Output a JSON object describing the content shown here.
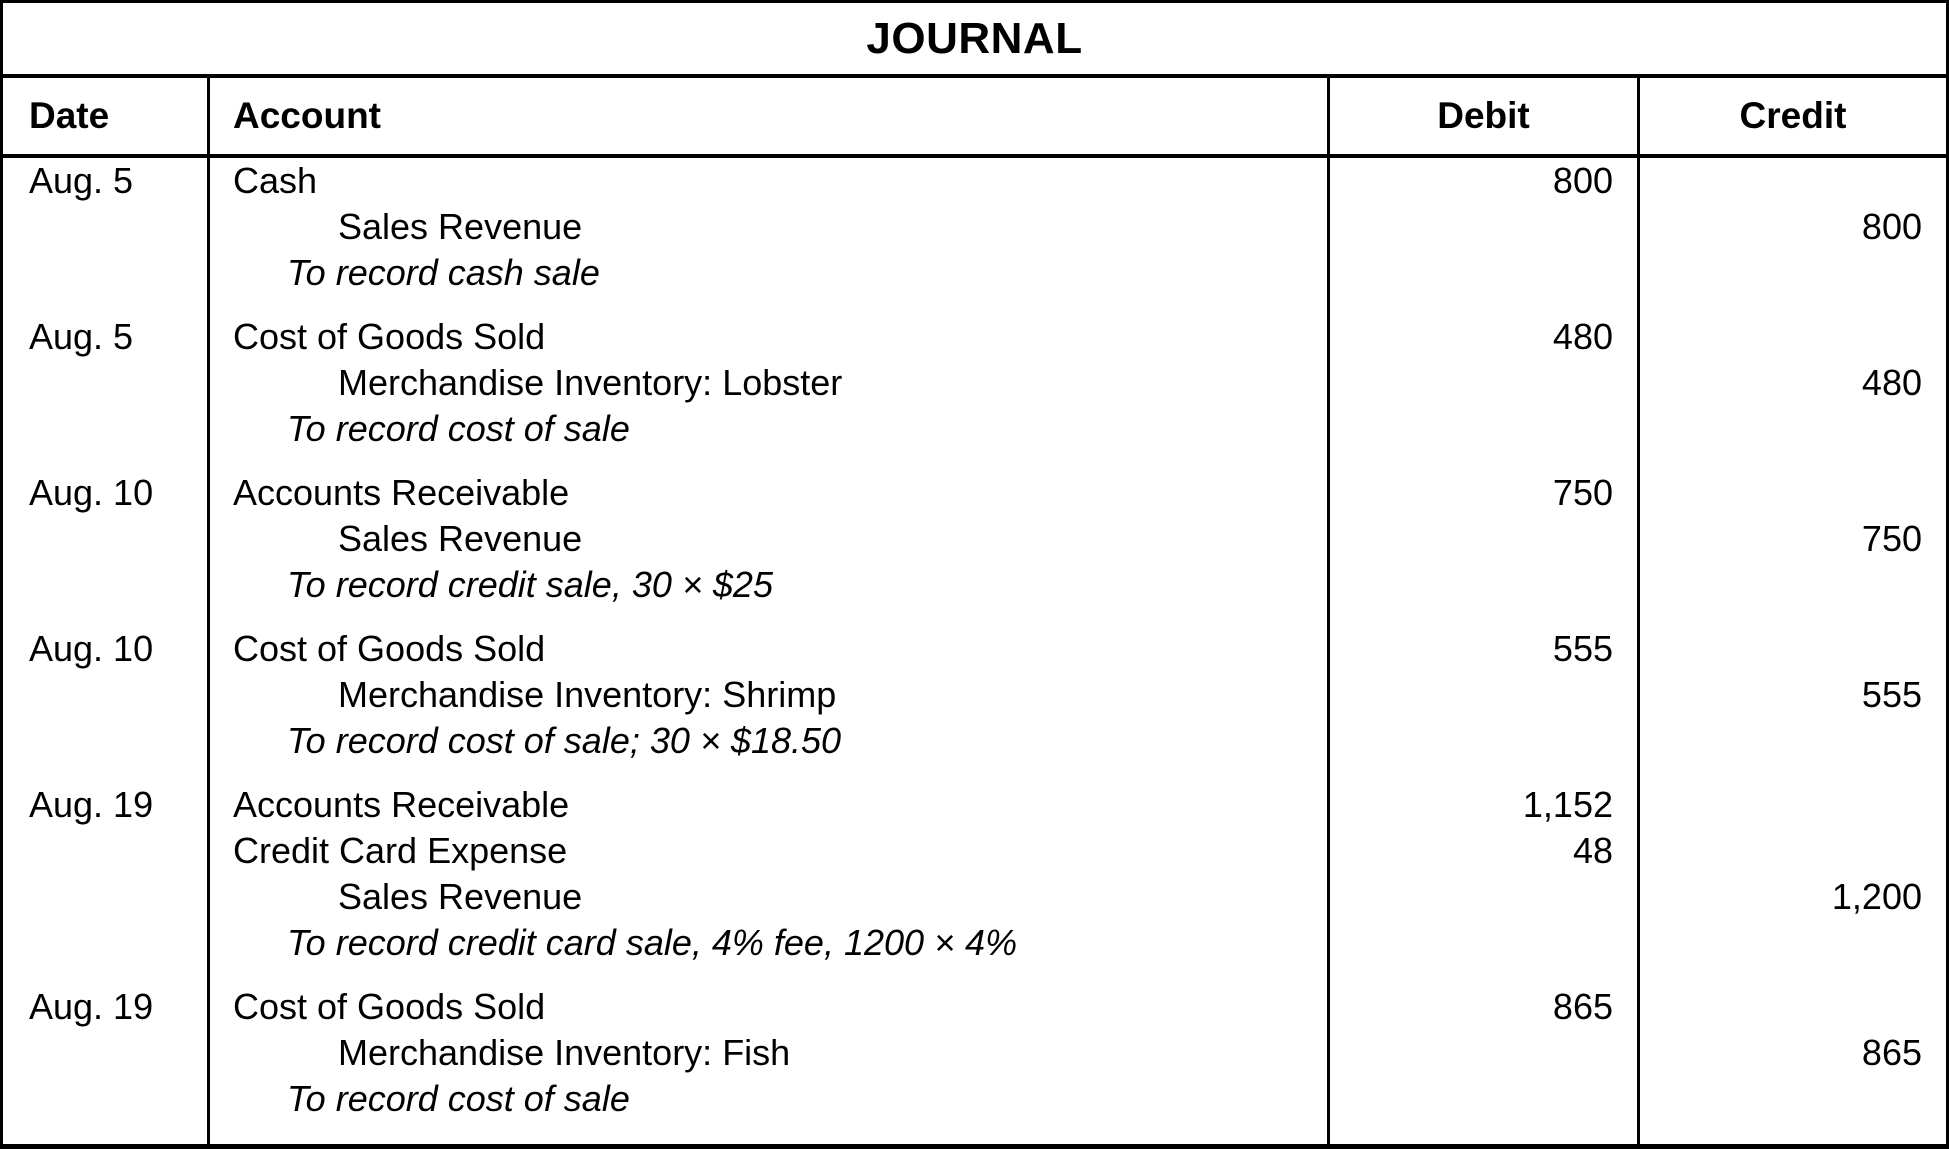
{
  "title": "JOURNAL",
  "columns": {
    "date": "Date",
    "account": "Account",
    "debit": "Debit",
    "credit": "Credit"
  },
  "entries": [
    {
      "date": "Aug. 5",
      "lines": [
        {
          "type": "debit",
          "account": "Cash",
          "debit": "800",
          "credit": ""
        },
        {
          "type": "credit",
          "account": "Sales Revenue",
          "debit": "",
          "credit": "800"
        },
        {
          "type": "description",
          "account": "To record cash sale",
          "debit": "",
          "credit": ""
        }
      ]
    },
    {
      "date": "Aug. 5",
      "lines": [
        {
          "type": "debit",
          "account": "Cost of Goods Sold",
          "debit": "480",
          "credit": ""
        },
        {
          "type": "credit",
          "account": "Merchandise Inventory: Lobster",
          "debit": "",
          "credit": "480"
        },
        {
          "type": "description",
          "account": "To record cost of sale",
          "debit": "",
          "credit": ""
        }
      ]
    },
    {
      "date": "Aug. 10",
      "lines": [
        {
          "type": "debit",
          "account": "Accounts Receivable",
          "debit": "750",
          "credit": ""
        },
        {
          "type": "credit",
          "account": "Sales Revenue",
          "debit": "",
          "credit": "750"
        },
        {
          "type": "description",
          "account": "To record credit sale, 30 × $25",
          "debit": "",
          "credit": ""
        }
      ]
    },
    {
      "date": "Aug. 10",
      "lines": [
        {
          "type": "debit",
          "account": "Cost of Goods Sold",
          "debit": "555",
          "credit": ""
        },
        {
          "type": "credit",
          "account": "Merchandise Inventory: Shrimp",
          "debit": "",
          "credit": "555"
        },
        {
          "type": "description",
          "account": "To record cost of sale; 30 × $18.50",
          "debit": "",
          "credit": ""
        }
      ]
    },
    {
      "date": "Aug. 19",
      "lines": [
        {
          "type": "debit",
          "account": "Accounts Receivable",
          "debit": "1,152",
          "credit": ""
        },
        {
          "type": "debit",
          "account": "Credit Card Expense",
          "debit": "48",
          "credit": ""
        },
        {
          "type": "credit",
          "account": "Sales Revenue",
          "debit": "",
          "credit": "1,200"
        },
        {
          "type": "description",
          "account": "To record credit card sale, 4% fee, 1200 × 4%",
          "debit": "",
          "credit": ""
        }
      ]
    },
    {
      "date": "Aug. 19",
      "lines": [
        {
          "type": "debit",
          "account": "Cost of Goods Sold",
          "debit": "865",
          "credit": ""
        },
        {
          "type": "credit",
          "account": "Merchandise Inventory: Fish",
          "debit": "",
          "credit": "865"
        },
        {
          "type": "description",
          "account": "To record cost of sale",
          "debit": "",
          "credit": ""
        }
      ]
    }
  ]
}
